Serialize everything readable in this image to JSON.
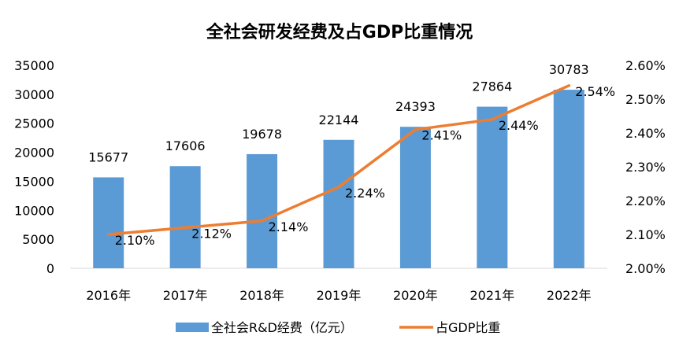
{
  "chart_data": {
    "type": "bar",
    "title": "全社会研发经费及占GDP比重情况",
    "categories": [
      "2016年",
      "2017年",
      "2018年",
      "2019年",
      "2020年",
      "2021年",
      "2022年"
    ],
    "series": [
      {
        "name": "全社会R&D经费（亿元）",
        "type": "bar",
        "axis": "left",
        "color": "#5b9bd5",
        "values": [
          15677,
          17606,
          19678,
          22144,
          24393,
          27864,
          30783
        ],
        "labels": [
          "15677",
          "17606",
          "19678",
          "22144",
          "24393",
          "27864",
          "30783"
        ]
      },
      {
        "name": "占GDP比重",
        "type": "line",
        "axis": "right",
        "color": "#ed7d31",
        "values": [
          2.1,
          2.12,
          2.14,
          2.24,
          2.41,
          2.44,
          2.54
        ],
        "labels": [
          "2.10%",
          "2.12%",
          "2.14%",
          "2.24%",
          "2.41%",
          "2.44%",
          "2.54%"
        ]
      }
    ],
    "y_left": {
      "ylim": [
        0,
        35000
      ],
      "ticks": [
        "0",
        "5000",
        "10000",
        "15000",
        "20000",
        "25000",
        "30000",
        "35000"
      ]
    },
    "y_right": {
      "ylim": [
        2.0,
        2.6
      ],
      "ticks": [
        "2.00%",
        "2.10%",
        "2.20%",
        "2.30%",
        "2.40%",
        "2.50%",
        "2.60%"
      ]
    },
    "grid": false,
    "legend_position": "bottom"
  }
}
